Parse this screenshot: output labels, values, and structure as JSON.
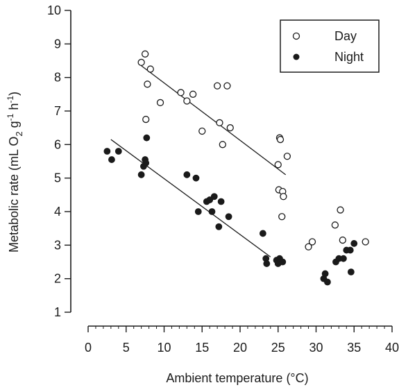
{
  "chart_data": {
    "type": "scatter",
    "title": "",
    "xlabel": "Ambient temperature (°C)",
    "ylabel_parts": {
      "prefix": "Metabolic rate (mL O",
      "o2_sub": "2",
      "g": " g",
      "g_sup": "-1",
      "h": " h",
      "h_sup": "-1",
      "suffix": ")"
    },
    "xlim": [
      0,
      40
    ],
    "ylim": [
      1,
      10
    ],
    "xticks": [
      0,
      5,
      10,
      15,
      20,
      25,
      30,
      35,
      40
    ],
    "yticks": [
      1,
      2,
      3,
      4,
      5,
      6,
      7,
      8,
      9,
      10
    ],
    "grid": false,
    "legend": {
      "position": "top-right",
      "entries": [
        {
          "label": "Day",
          "marker": "open-circle"
        },
        {
          "label": "Night",
          "marker": "filled-circle"
        }
      ]
    },
    "series": [
      {
        "name": "Day",
        "marker": "open-circle",
        "points": [
          [
            7.0,
            8.45
          ],
          [
            7.5,
            8.7
          ],
          [
            8.2,
            8.25
          ],
          [
            7.8,
            7.8
          ],
          [
            7.6,
            6.75
          ],
          [
            9.5,
            7.25
          ],
          [
            12.2,
            7.55
          ],
          [
            13.0,
            7.3
          ],
          [
            13.8,
            7.5
          ],
          [
            15.0,
            6.4
          ],
          [
            17.0,
            7.75
          ],
          [
            17.3,
            6.65
          ],
          [
            17.7,
            6.0
          ],
          [
            18.3,
            7.75
          ],
          [
            18.7,
            6.5
          ],
          [
            25.2,
            6.2
          ],
          [
            25.3,
            6.15
          ],
          [
            25.0,
            5.4
          ],
          [
            26.2,
            5.65
          ],
          [
            25.1,
            4.65
          ],
          [
            25.6,
            4.6
          ],
          [
            25.7,
            4.45
          ],
          [
            25.5,
            3.85
          ],
          [
            29.0,
            2.95
          ],
          [
            29.5,
            3.1
          ],
          [
            32.5,
            3.6
          ],
          [
            33.2,
            4.05
          ],
          [
            33.5,
            3.15
          ],
          [
            36.5,
            3.1
          ]
        ],
        "fit": {
          "x": [
            7.0,
            26.0
          ],
          "y": [
            8.35,
            5.1
          ]
        }
      },
      {
        "name": "Night",
        "marker": "filled-circle",
        "points": [
          [
            2.5,
            5.8
          ],
          [
            3.1,
            5.55
          ],
          [
            4.0,
            5.8
          ],
          [
            7.0,
            5.1
          ],
          [
            7.3,
            5.35
          ],
          [
            7.5,
            5.55
          ],
          [
            7.6,
            5.45
          ],
          [
            7.7,
            6.2
          ],
          [
            13.0,
            5.1
          ],
          [
            14.2,
            5.0
          ],
          [
            14.5,
            4.0
          ],
          [
            15.6,
            4.3
          ],
          [
            16.0,
            4.35
          ],
          [
            16.3,
            4.0
          ],
          [
            16.6,
            4.45
          ],
          [
            17.2,
            3.55
          ],
          [
            17.5,
            4.3
          ],
          [
            18.5,
            3.85
          ],
          [
            23.0,
            3.35
          ],
          [
            23.4,
            2.6
          ],
          [
            23.5,
            2.45
          ],
          [
            24.8,
            2.55
          ],
          [
            25.0,
            2.45
          ],
          [
            25.2,
            2.6
          ],
          [
            25.6,
            2.5
          ],
          [
            31.0,
            2.0
          ],
          [
            31.2,
            2.15
          ],
          [
            31.5,
            1.9
          ],
          [
            32.6,
            2.5
          ],
          [
            33.0,
            2.6
          ],
          [
            33.6,
            2.6
          ],
          [
            34.0,
            2.85
          ],
          [
            34.5,
            2.85
          ],
          [
            34.6,
            2.2
          ],
          [
            35.0,
            3.05
          ]
        ],
        "fit": {
          "x": [
            3.0,
            24.0
          ],
          "y": [
            6.15,
            2.65
          ]
        }
      }
    ]
  }
}
